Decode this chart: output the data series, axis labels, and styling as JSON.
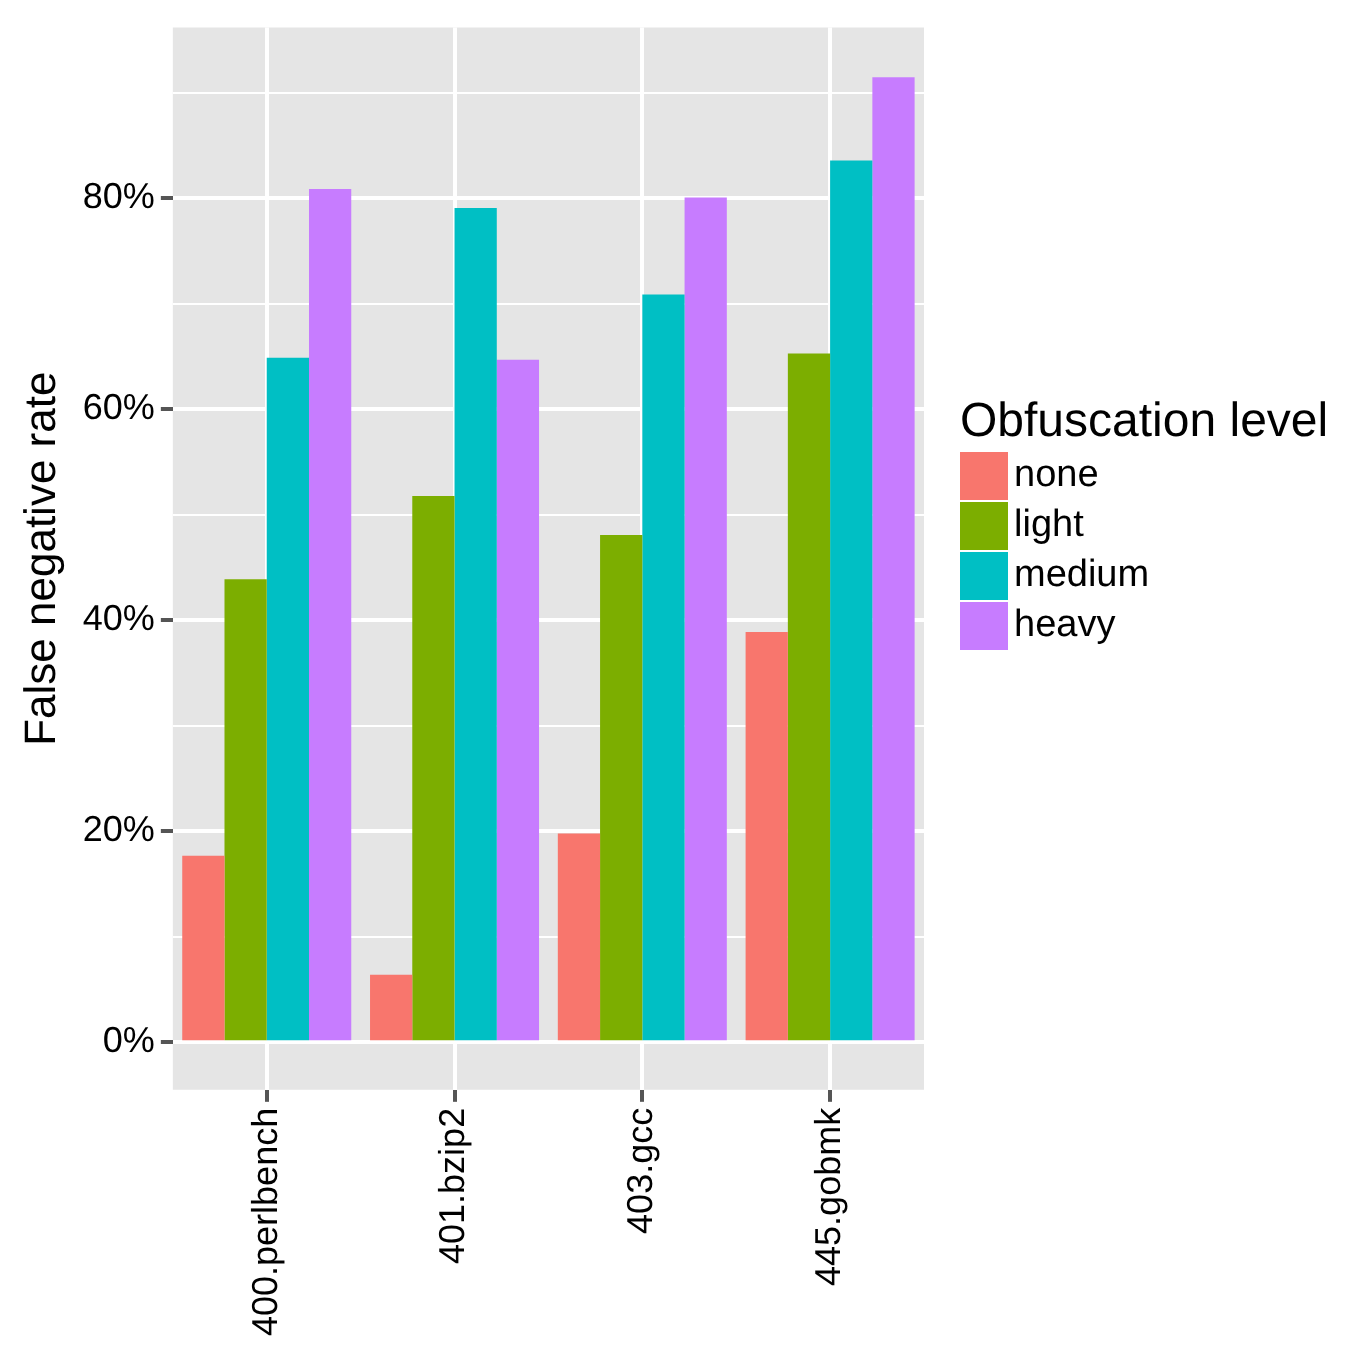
{
  "chart_data": {
    "type": "bar",
    "ylabel": "False negative rate",
    "legend_title": "Obfuscation level",
    "legend": "right",
    "grid": true,
    "categories": [
      "400.perlbench",
      "401.bzip2",
      "403.gcc",
      "445.gobmk"
    ],
    "series": [
      {
        "name": "none",
        "color": "#f8766d",
        "values": [
          17.7,
          6.4,
          19.8,
          38.9
        ]
      },
      {
        "name": "light",
        "color": "#7cae00",
        "values": [
          43.9,
          51.8,
          48.1,
          65.3
        ]
      },
      {
        "name": "medium",
        "color": "#00bfc4",
        "values": [
          64.9,
          79.1,
          70.9,
          83.6
        ]
      },
      {
        "name": "heavy",
        "color": "#c77cff",
        "values": [
          80.9,
          64.7,
          80.1,
          91.5
        ]
      }
    ],
    "ylim": [
      -4.5,
      96.2
    ],
    "yticks": [
      {
        "value": 0,
        "label": "0%"
      },
      {
        "value": 10,
        "label": null
      },
      {
        "value": 20,
        "label": "20%"
      },
      {
        "value": 30,
        "label": null
      },
      {
        "value": 40,
        "label": "40%"
      },
      {
        "value": 50,
        "label": null
      },
      {
        "value": 60,
        "label": "60%"
      },
      {
        "value": 70,
        "label": null
      },
      {
        "value": 80,
        "label": "80%"
      },
      {
        "value": 90,
        "label": null
      }
    ]
  }
}
